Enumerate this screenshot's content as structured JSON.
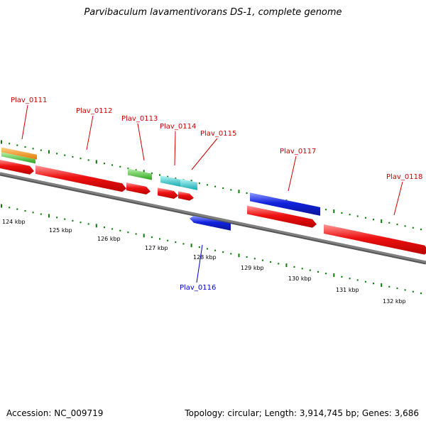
{
  "title": "Parvibaculum lavamentivorans DS-1, complete genome",
  "footer": {
    "accession": "Accession: NC_009719",
    "topology": "Topology: circular; Length: 3,914,745 bp; Genes: 3,686"
  },
  "colors": {
    "forward_gene": "#ee1111",
    "reverse_gene": "#1122dd",
    "label_forward": "#cc0000",
    "label_reverse": "#0000cc",
    "backbone": "#808080",
    "tick": "#0a7a0a",
    "cog_orange": "#ff9900",
    "cog_green": "#44cc33",
    "cog_cyan": "#22cccc",
    "cog_blue": "#1122dd"
  },
  "axis": {
    "tick_labels": [
      "124 kbp",
      "125 kbp",
      "126 kbp",
      "127 kbp",
      "128 kbp",
      "129 kbp",
      "130 kbp",
      "131 kbp",
      "132 kbp"
    ]
  },
  "genes": [
    {
      "name": "Plav_0111",
      "strand": "forward"
    },
    {
      "name": "Plav_0112",
      "strand": "forward"
    },
    {
      "name": "Plav_0113",
      "strand": "forward"
    },
    {
      "name": "Plav_0114",
      "strand": "forward"
    },
    {
      "name": "Plav_0115",
      "strand": "forward"
    },
    {
      "name": "Plav_0116",
      "strand": "reverse"
    },
    {
      "name": "Plav_0117",
      "strand": "forward"
    },
    {
      "name": "Plav_0118",
      "strand": "forward"
    }
  ]
}
